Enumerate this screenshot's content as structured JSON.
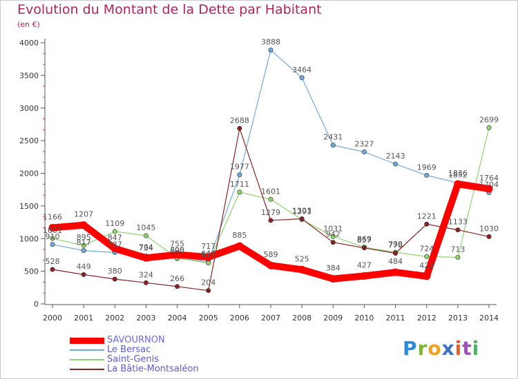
{
  "title": "Evolution du Montant de la Dette par Habitant",
  "subtitle": "(en €)",
  "logo_text": "Proxiti",
  "chart_data": {
    "type": "line",
    "title": "Evolution du Montant de la Dette par Habitant",
    "subtitle": "(en €)",
    "xlabel": "",
    "ylabel": "",
    "x": [
      "2000",
      "2001",
      "2002",
      "2003",
      "2004",
      "2005",
      "2006",
      "2007",
      "2008",
      "2009",
      "2010",
      "2011",
      "2012",
      "2013",
      "2014"
    ],
    "ylim": [
      0,
      4000
    ],
    "yticks": [
      "0",
      "500",
      "1000",
      "1500",
      "2000",
      "2500",
      "3000",
      "3500",
      "4000"
    ],
    "grid": false,
    "legend_position": "bottom-left",
    "series": [
      {
        "name": "SAVOURNON",
        "color": "#ff0000",
        "values": [
          1166,
          1207,
          847,
          704,
          755,
          717,
          885,
          589,
          525,
          384,
          427,
          484,
          423,
          1836,
          1764
        ],
        "labels": [
          "1166",
          "1207",
          "847",
          "704",
          "755",
          "717",
          "885",
          "589",
          "525",
          "384",
          "427",
          "484",
          "423",
          "1836",
          "1764"
        ]
      },
      {
        "name": "Le Bersac",
        "color": "#6fa8dc",
        "values": [
          910,
          817,
          787,
          734,
          695,
          647,
          1977,
          3888,
          3464,
          2431,
          2327,
          2143,
          1969,
          1852,
          1704
        ],
        "labels": [
          "910",
          "817",
          "787",
          "734",
          "695",
          "647",
          "1977",
          "3888",
          "3464",
          "2431",
          "2327",
          "2143",
          "1969",
          "1852",
          "1704"
        ]
      },
      {
        "name": "Saint-Genis",
        "color": "#8ed46f",
        "values": [
          1001,
          895,
          1109,
          1045,
          700,
          627,
          1711,
          1601,
          1291,
          1031,
          869,
          790,
          724,
          713,
          2699
        ],
        "labels": [
          "1001",
          "895",
          "1109",
          "1045",
          "700",
          "627",
          "1711",
          "1601",
          "1291",
          "1031",
          "869",
          "790",
          "724",
          "713",
          "2699"
        ]
      },
      {
        "name": "La Bâtie-Montsaléon",
        "color": "#8a2222",
        "values": [
          528,
          449,
          380,
          324,
          266,
          204,
          2688,
          1279,
          1303,
          942,
          857,
          776,
          1221,
          1133,
          1030
        ],
        "labels": [
          "528",
          "449",
          "380",
          "324",
          "266",
          "204",
          "2688",
          "1279",
          "1303",
          "942",
          "857",
          "776",
          "1221",
          "1133",
          "1030"
        ]
      }
    ]
  }
}
